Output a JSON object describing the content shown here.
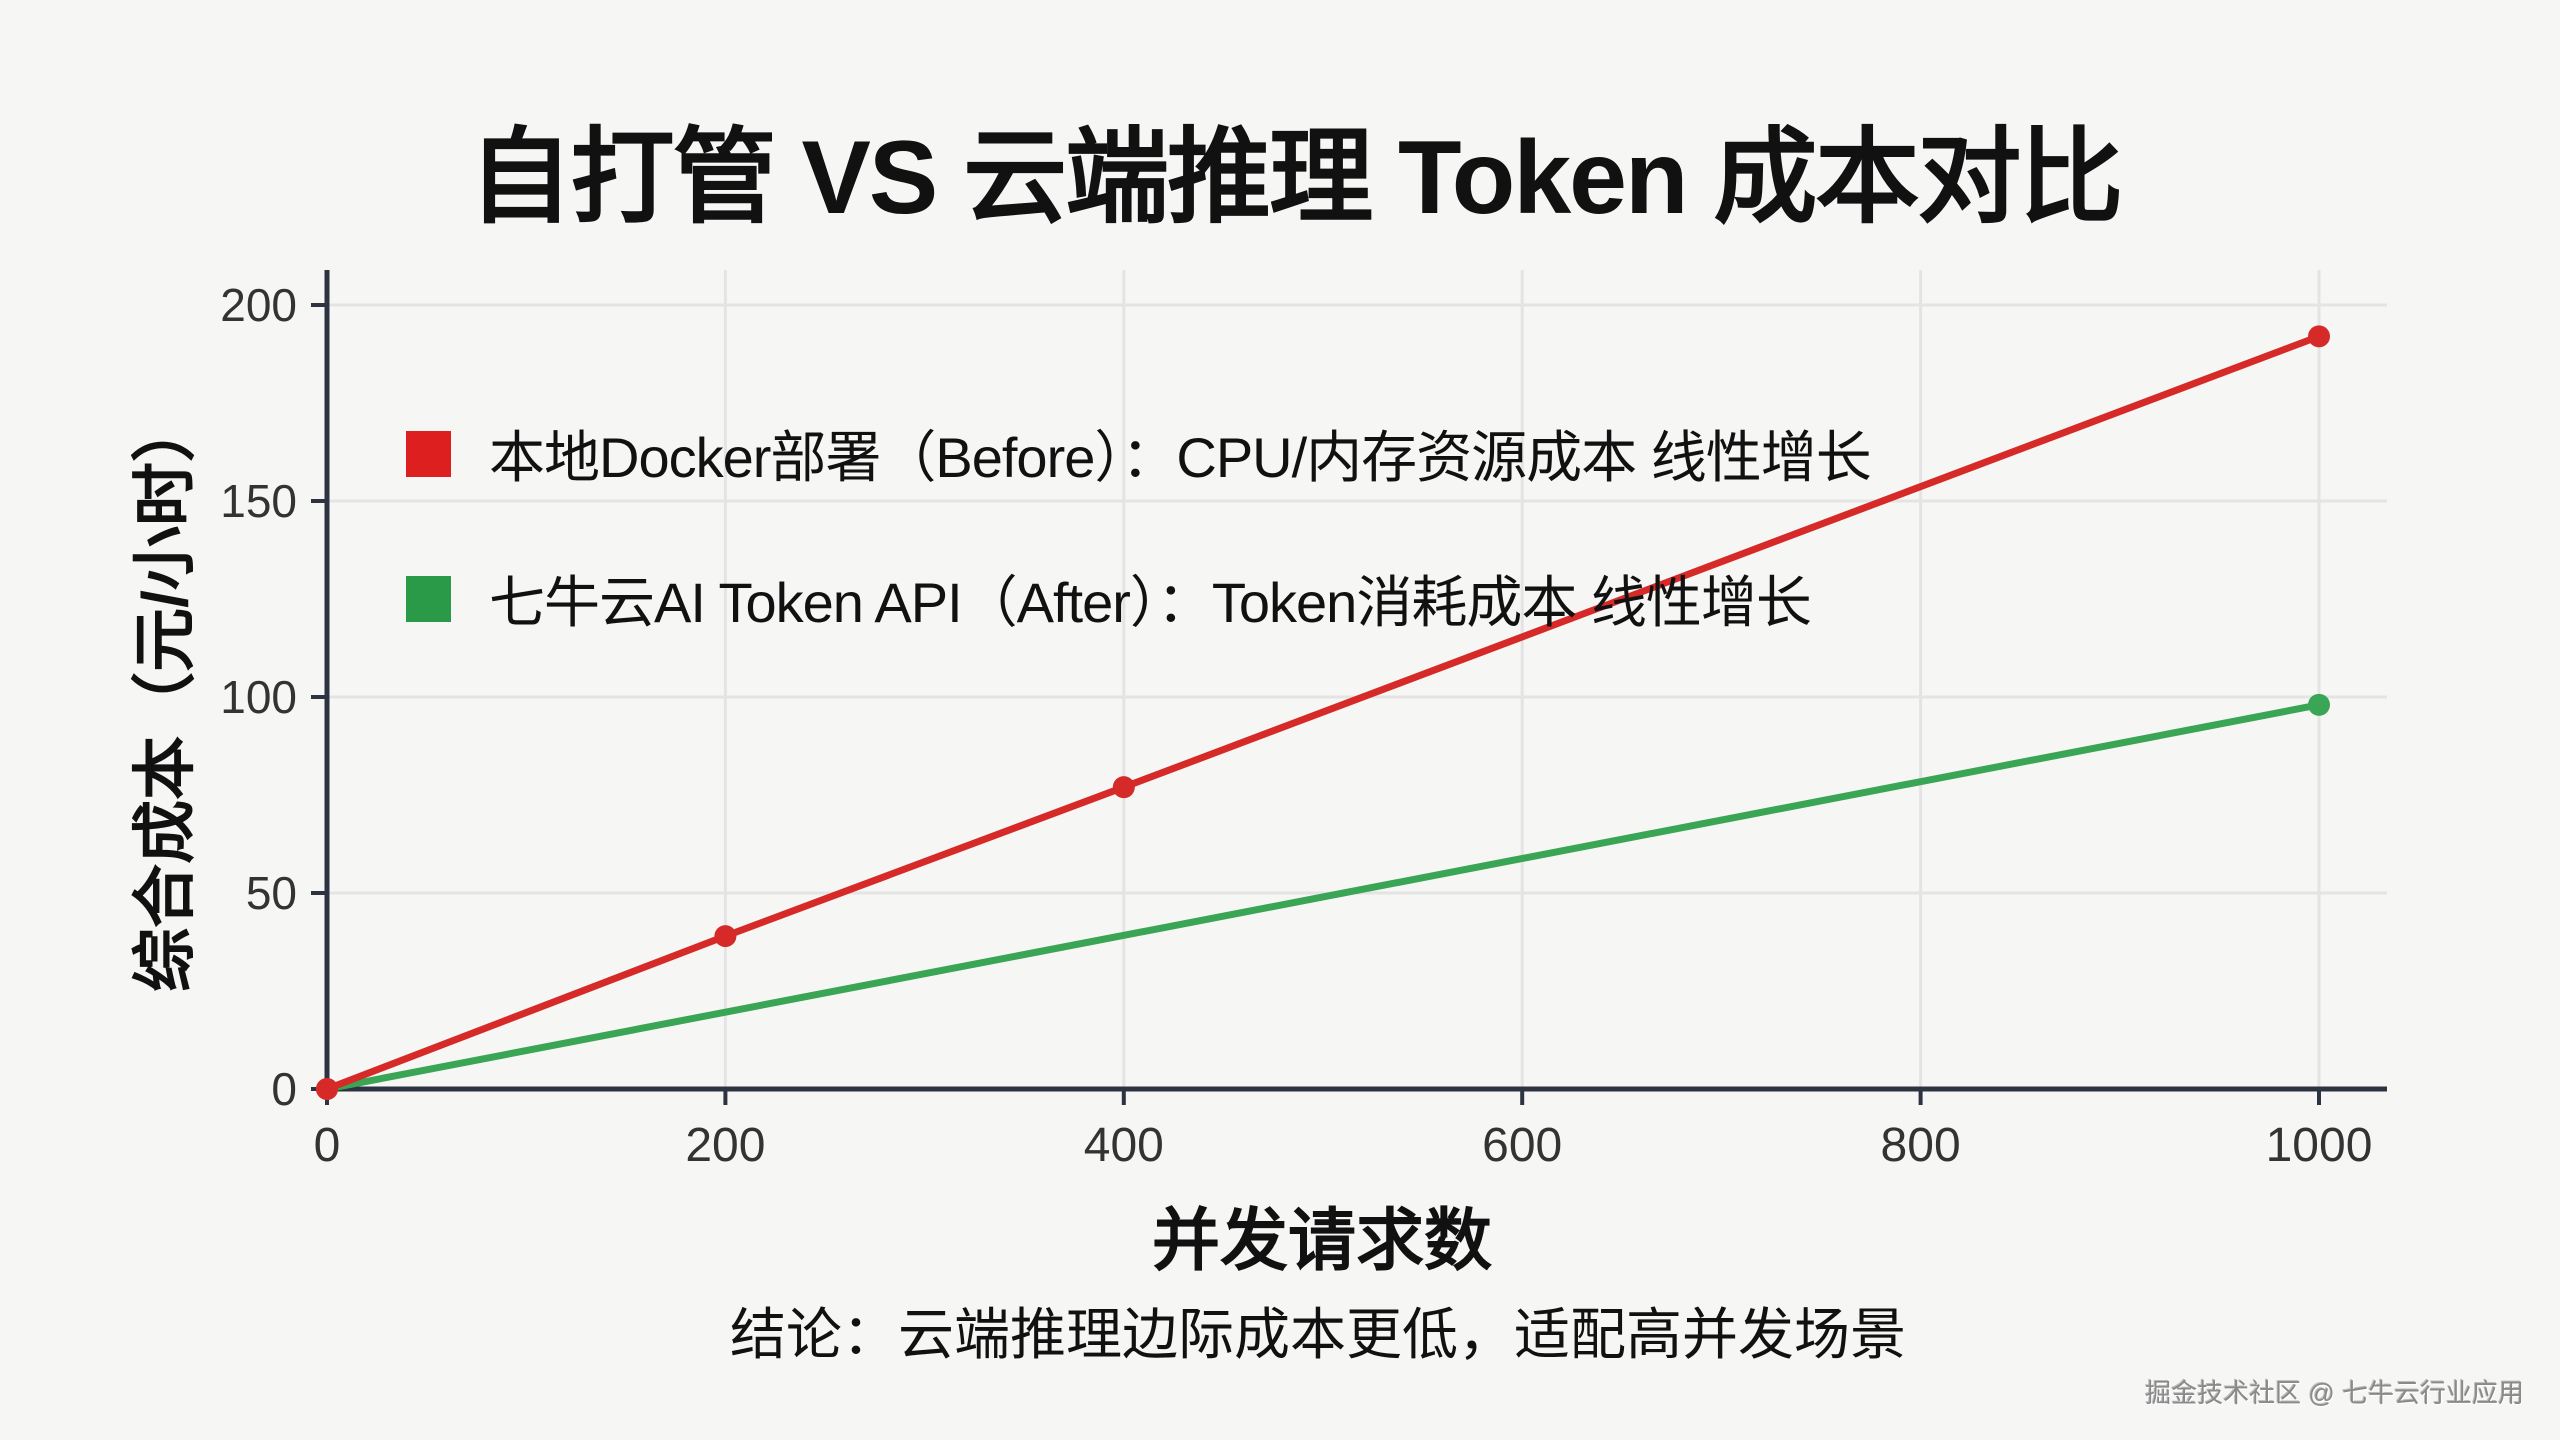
{
  "title": "自打管 VS 云端推理 Token 成本对比",
  "legend": [
    {
      "label": "本地Docker部署（Before）：CPU/内存资源成本 线性增长",
      "color": "#dd1f1f"
    },
    {
      "label": "七牛云AI Token API（After）：Token消耗成本 线性增长",
      "color": "#2a9a48"
    }
  ],
  "axes": {
    "ylabel": "综合成本（元/小时）",
    "xlabel": "并发请求数",
    "yticks": [
      "0",
      "50",
      "100",
      "150",
      "200"
    ],
    "xticks": [
      "0",
      "200",
      "400",
      "600",
      "800",
      "1000"
    ]
  },
  "conclusion": "结论：云端推理边际成本更低，适配高并发场景",
  "watermark": "掘金技术社区 @ 七牛云行业应用",
  "chart_data": {
    "type": "line",
    "title": "自打管 VS 云端推理 Token 成本对比",
    "xlabel": "并发请求数",
    "ylabel": "综合成本（元/小时）",
    "x": [
      0,
      200,
      400,
      1000
    ],
    "series": [
      {
        "name": "本地Docker部署（Before）：CPU/内存资源成本 线性增长",
        "color": "#d62a28",
        "x": [
          0,
          200,
          400,
          1000
        ],
        "values": [
          0,
          39,
          77,
          192
        ],
        "markers": [
          0,
          200,
          400,
          1000
        ]
      },
      {
        "name": "七牛云AI Token API（After）：Token消耗成本 线性增长",
        "color": "#3aa555",
        "x": [
          0,
          1000
        ],
        "values": [
          0,
          98
        ],
        "markers": [
          1000
        ]
      }
    ],
    "xlim": [
      0,
      1000
    ],
    "ylim": [
      0,
      200
    ],
    "xticks": [
      0,
      200,
      400,
      600,
      800,
      1000
    ],
    "yticks": [
      0,
      50,
      100,
      150,
      200
    ],
    "grid": true,
    "legend_position": "upper left (inside)",
    "annotations": [
      "结论：云端推理边际成本更低，适配高并发场景"
    ]
  }
}
